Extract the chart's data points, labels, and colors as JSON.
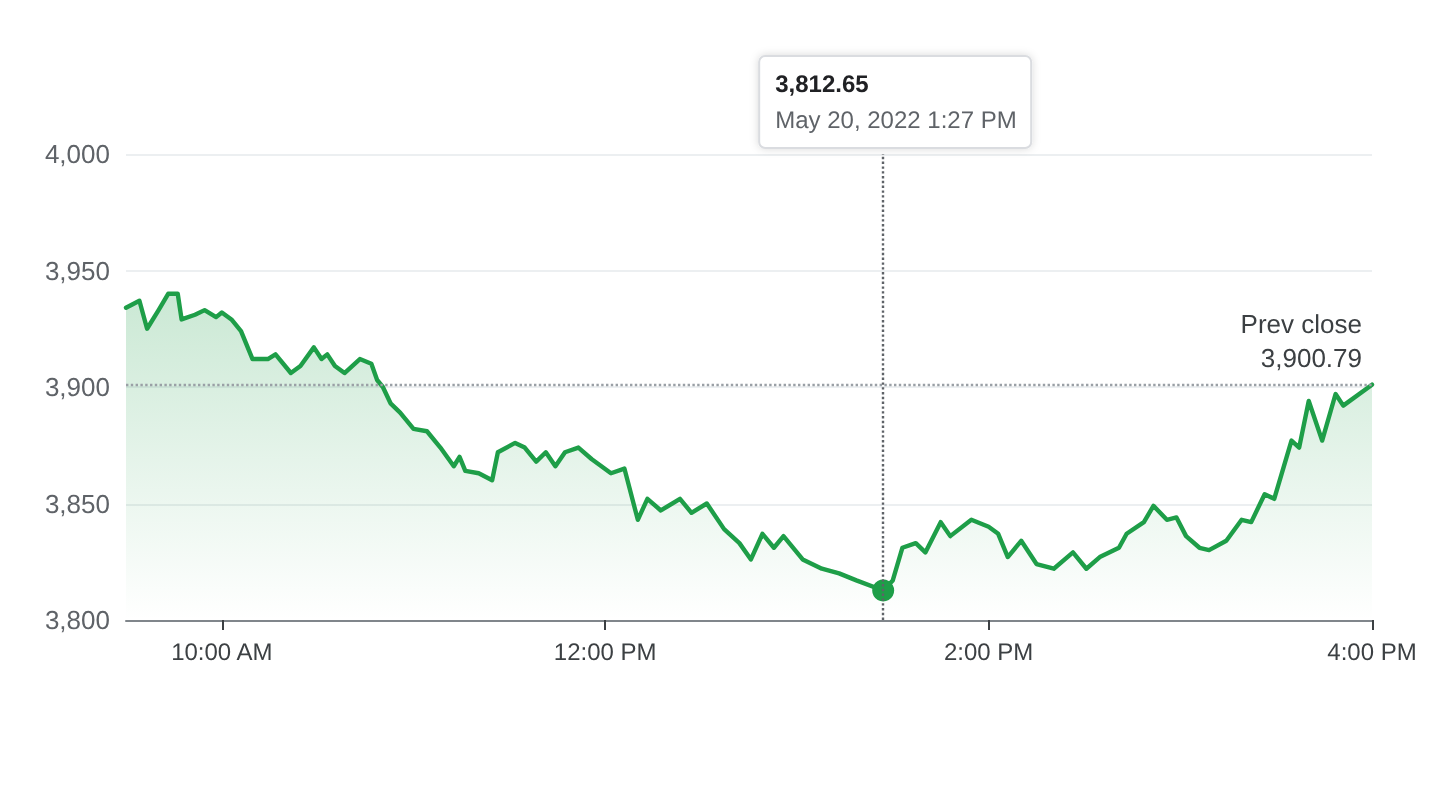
{
  "chart_data": {
    "type": "area",
    "x": [
      9.5,
      9.57,
      9.61,
      9.67,
      9.72,
      9.77,
      9.79,
      9.86,
      9.91,
      9.97,
      10.0,
      10.05,
      10.1,
      10.16,
      10.24,
      10.28,
      10.36,
      10.41,
      10.48,
      10.52,
      10.55,
      10.59,
      10.64,
      10.72,
      10.78,
      10.81,
      10.84,
      10.88,
      10.93,
      11.0,
      11.07,
      11.14,
      11.21,
      11.24,
      11.27,
      11.34,
      11.41,
      11.44,
      11.53,
      11.58,
      11.64,
      11.69,
      11.74,
      11.79,
      11.86,
      11.93,
      12.03,
      12.1,
      12.17,
      12.22,
      12.29,
      12.39,
      12.45,
      12.53,
      12.62,
      12.7,
      12.76,
      12.82,
      12.88,
      12.93,
      13.03,
      13.13,
      13.22,
      13.31,
      13.45,
      13.5,
      13.55,
      13.62,
      13.67,
      13.75,
      13.8,
      13.91,
      14.0,
      14.05,
      14.1,
      14.17,
      14.25,
      14.34,
      14.44,
      14.51,
      14.58,
      14.68,
      14.72,
      14.81,
      14.86,
      14.93,
      14.98,
      15.03,
      15.1,
      15.15,
      15.24,
      15.32,
      15.37,
      15.44,
      15.49,
      15.58,
      15.62,
      15.67,
      15.74,
      15.81,
      15.85,
      16.0
    ],
    "series": [
      {
        "color": "#1e9e48",
        "values": [
          3934,
          3937,
          3925,
          3933,
          3940,
          3940,
          3929,
          3931,
          3933,
          3930,
          3932,
          3929,
          3924,
          3912,
          3912,
          3914,
          3906,
          3909,
          3917,
          3912,
          3914,
          3909,
          3906,
          3912,
          3910,
          3903,
          3900,
          3893,
          3889,
          3882,
          3881,
          3874,
          3866,
          3870,
          3864,
          3863,
          3860,
          3872,
          3876,
          3874,
          3868,
          3872,
          3866,
          3872,
          3874,
          3869,
          3863,
          3865,
          3843,
          3852,
          3847,
          3852,
          3846,
          3850,
          3839,
          3833,
          3826,
          3837,
          3831,
          3836,
          3826,
          3822,
          3820,
          3817,
          3812.65,
          3817,
          3831,
          3833,
          3829,
          3842,
          3836,
          3843,
          3840,
          3837,
          3827,
          3834,
          3824,
          3822,
          3829,
          3822,
          3827,
          3831,
          3837,
          3842,
          3849,
          3843,
          3844,
          3836,
          3831,
          3830,
          3834,
          3843,
          3842,
          3854,
          3852,
          3877,
          3874,
          3894,
          3877,
          3897,
          3892,
          3901
        ]
      }
    ],
    "xlim": [
      9.5,
      16
    ],
    "xticks": [
      {
        "value": 10,
        "label": "10:00 AM"
      },
      {
        "value": 12,
        "label": "12:00 PM"
      },
      {
        "value": 14,
        "label": "2:00 PM"
      },
      {
        "value": 16,
        "label": "4:00 PM"
      }
    ],
    "ylim": [
      3800,
      4000
    ],
    "yticks": [
      {
        "value": 3800,
        "label": "3,800"
      },
      {
        "value": 3850,
        "label": "3,850"
      },
      {
        "value": 3900,
        "label": "3,900"
      },
      {
        "value": 3950,
        "label": "3,950"
      },
      {
        "value": 4000,
        "label": "4,000"
      }
    ],
    "grid": "y",
    "marker": "none",
    "line_style": "solid",
    "ref_lines": [
      {
        "axis": "y",
        "value": 3900.79,
        "label": "Prev close\n3,900.79",
        "line_style": "dotted",
        "color": "#9aa0a6"
      },
      {
        "axis": "x",
        "value": 13.45,
        "line_style": "dotted",
        "color": "#5f6368"
      }
    ],
    "annotations": [
      "3,812.65\nMay 20, 2022 1:27 PM"
    ]
  }
}
